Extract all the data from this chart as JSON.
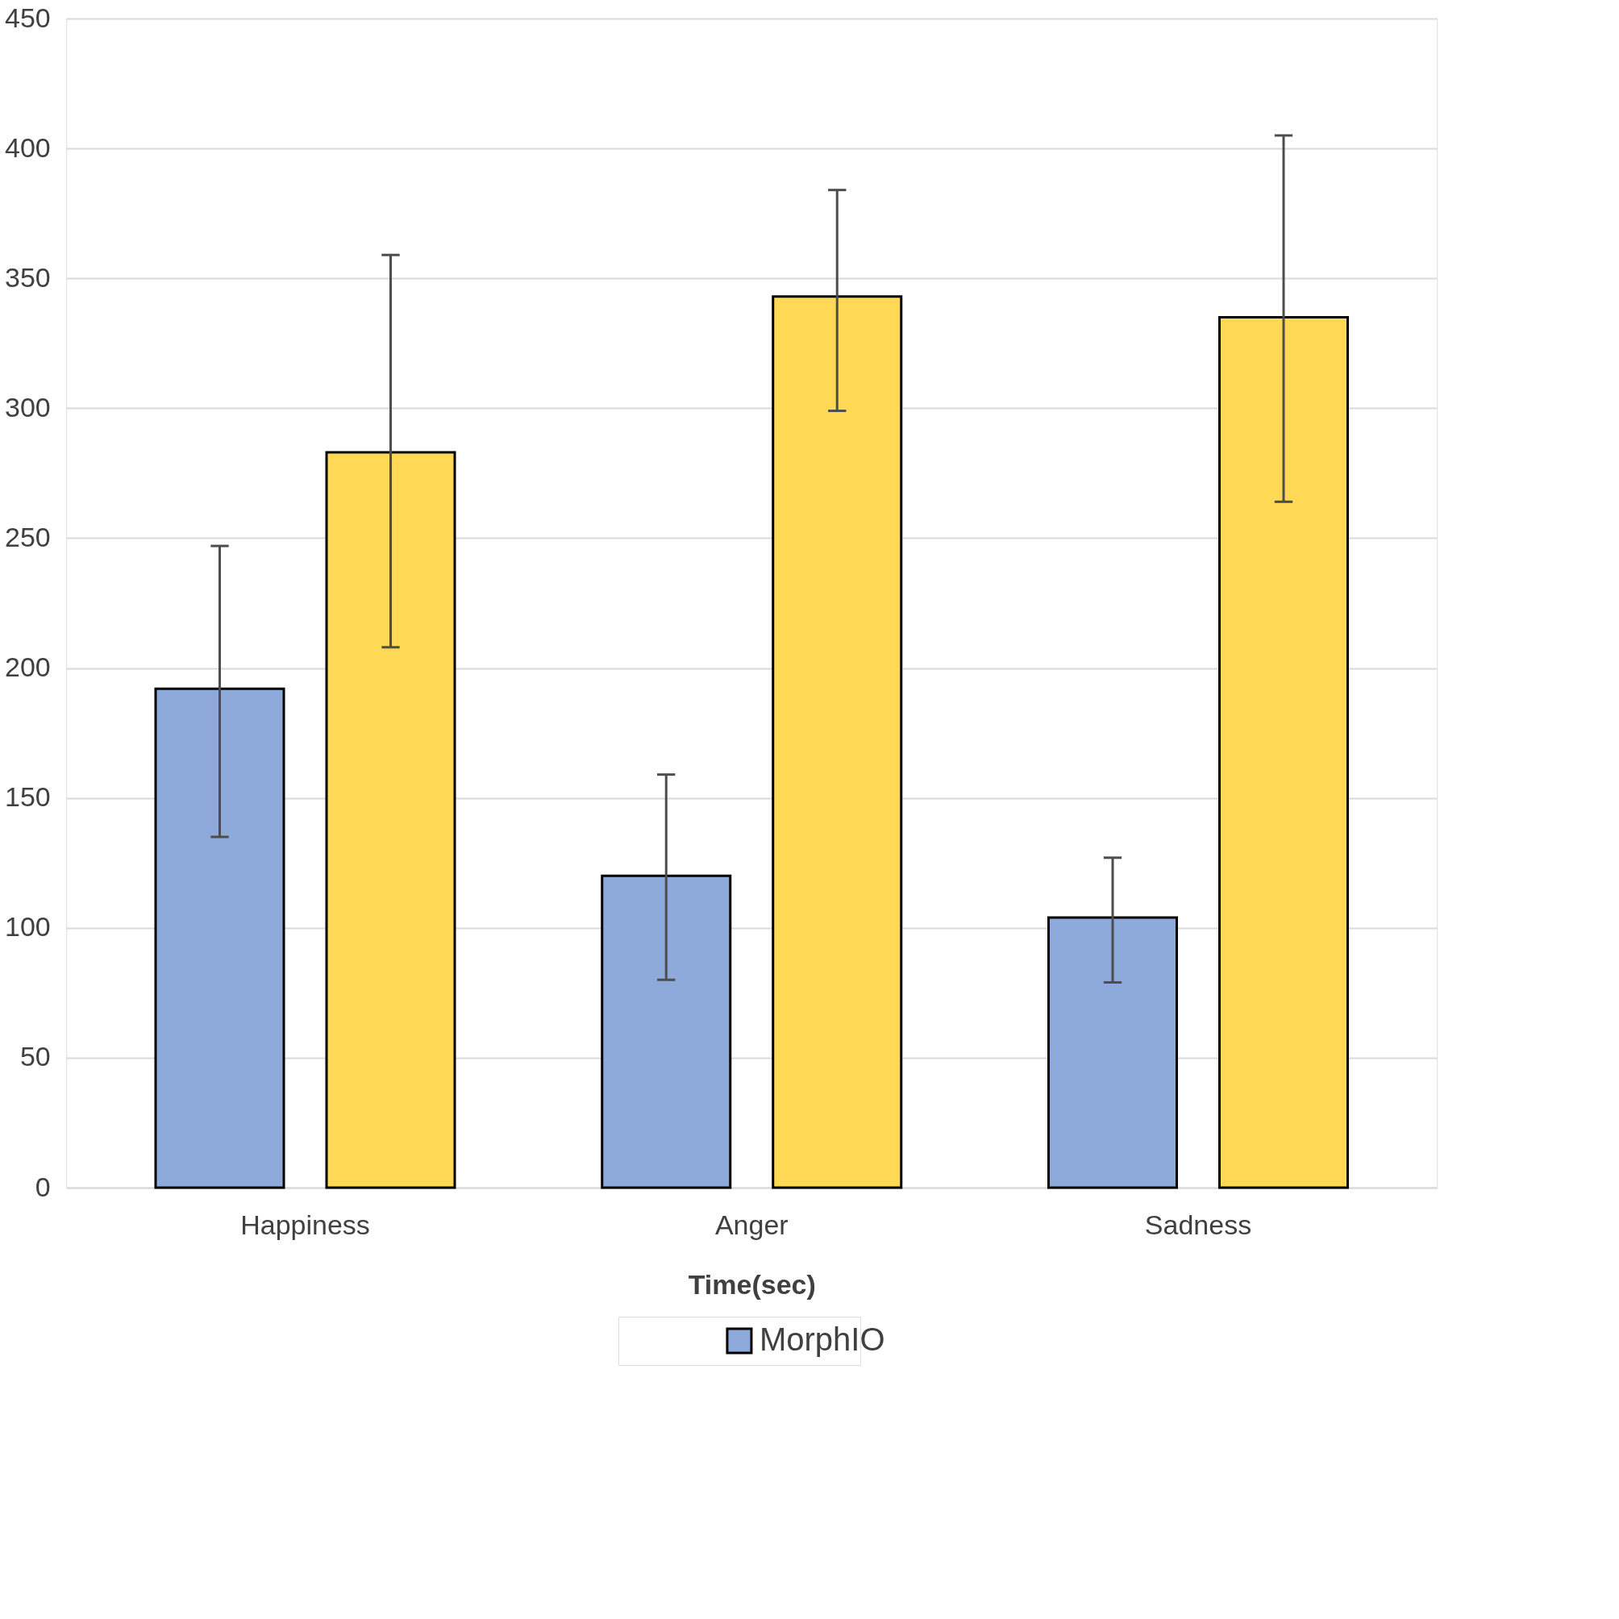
{
  "chart_data": {
    "type": "bar",
    "xlabel": "Time(sec)",
    "categories": [
      "Happiness",
      "Anger",
      "Sadness"
    ],
    "series": [
      {
        "name": "MorphIO",
        "color": "#8eaadb",
        "values": [
          192,
          120,
          104
        ],
        "errors": [
          [
            135,
            247
          ],
          [
            80,
            159
          ],
          [
            79,
            127
          ]
        ]
      },
      {
        "color": "#ffd955",
        "values": [
          283,
          343,
          335
        ],
        "errors": [
          [
            208,
            359
          ],
          [
            299,
            384
          ],
          [
            264,
            405
          ]
        ]
      }
    ],
    "ylim": [
      0,
      450
    ],
    "yticks": [
      0,
      50,
      100,
      150,
      200,
      250,
      300,
      350,
      400,
      450
    ],
    "grid": "y",
    "legend": "bottom"
  }
}
